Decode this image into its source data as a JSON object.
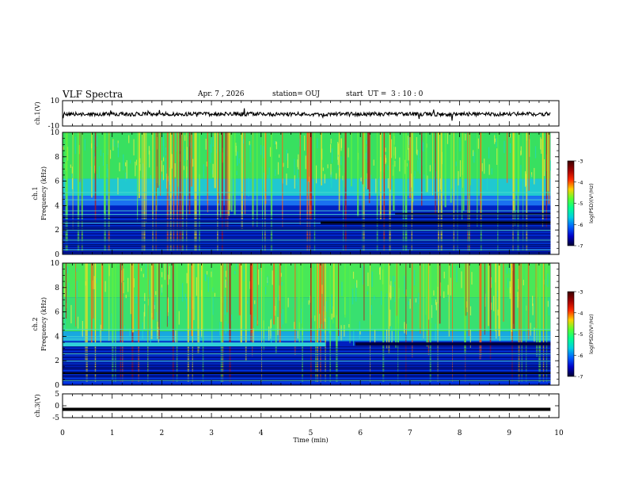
{
  "header": {
    "title": "VLF Spectra",
    "date": "Apr. 7 , 2026",
    "station": "station= OUJ",
    "start": "start  UT =  3 : 10 : 0"
  },
  "chart_data": {
    "type": "heatmap",
    "title": "VLF Spectra",
    "xlabel": "Time (min)",
    "x_ticks": [
      "0",
      "1",
      "2",
      "3",
      "4",
      "5",
      "6",
      "7",
      "8",
      "9",
      "10"
    ],
    "xlim": [
      0,
      10
    ],
    "data_end_min": 9.83,
    "panels": [
      {
        "kind": "waveform",
        "ylabel": "ch.1(V)",
        "y_ticks": [
          "10",
          "-10"
        ],
        "ylim": [
          -10,
          10
        ]
      },
      {
        "kind": "spectrogram",
        "ylabel": "ch.1 Frequency (kHz)",
        "y_ticks": [
          "0",
          "2",
          "4",
          "6",
          "8",
          "10"
        ],
        "ylim": [
          0,
          10
        ],
        "colorbar": {
          "label": "log(PSD)(V²/Hz)",
          "ticks": [
            "-3",
            "-4",
            "-5",
            "-6",
            "-7"
          ],
          "range": [
            -7,
            -3
          ]
        }
      },
      {
        "kind": "spectrogram",
        "ylabel": "ch.2 Frequency (kHz)",
        "y_ticks": [
          "0",
          "2",
          "4",
          "6",
          "8",
          "10"
        ],
        "ylim": [
          0,
          10
        ],
        "colorbar": {
          "label": "log(PSD)(V²/Hz)",
          "ticks": [
            "-3",
            "-4",
            "-5",
            "-6",
            "-7"
          ],
          "range": [
            -7,
            -3
          ]
        }
      },
      {
        "kind": "waveform",
        "ylabel": "ch.3(V)",
        "y_ticks": [
          "5",
          "0",
          "-5"
        ],
        "ylim": [
          -5,
          5
        ],
        "level": -1.5
      }
    ]
  },
  "colors": {
    "cb": [
      "#3a0000",
      "#a00000",
      "#ff2a00",
      "#ffd000",
      "#5aff30",
      "#00ff90",
      "#00d0e0",
      "#0060ff",
      "#0000c8",
      "#000030"
    ]
  }
}
